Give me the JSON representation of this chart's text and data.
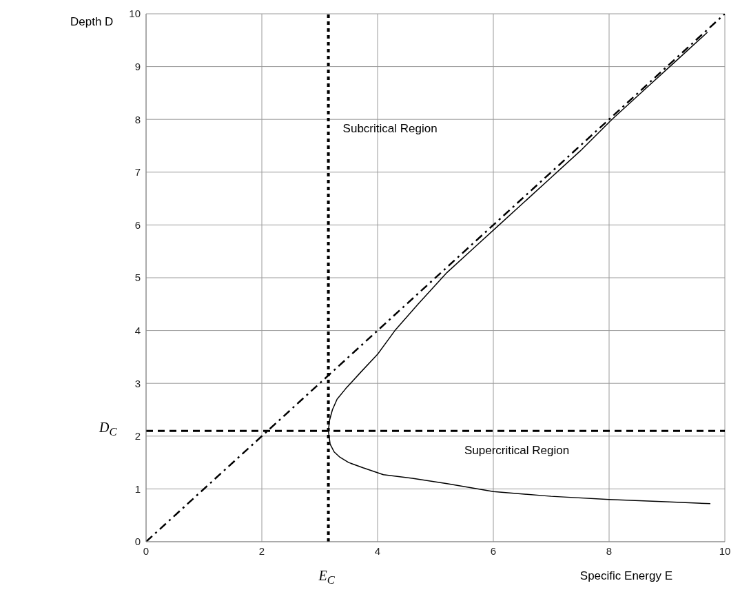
{
  "chart_data": {
    "type": "line",
    "xlabel": "Specific Energy E",
    "ylabel": "Depth D",
    "xlim": [
      0,
      10
    ],
    "ylim": [
      0,
      10
    ],
    "xticks": [
      0,
      2,
      4,
      6,
      8,
      10
    ],
    "yticks": [
      0,
      1,
      2,
      3,
      4,
      5,
      6,
      7,
      8,
      9,
      10
    ],
    "grid": true,
    "marker": "none",
    "series": [
      {
        "color": "#000000",
        "line_style": "solid",
        "x": [
          9.75,
          8.9,
          8,
          7,
          6,
          5.2,
          4.6,
          4.1,
          3.75,
          3.5,
          3.35,
          3.25,
          3.18,
          3.15,
          3.17,
          3.22,
          3.3,
          3.45,
          3.7,
          4.0,
          4.3,
          4.7,
          5.2,
          5.7,
          6.1,
          6.5,
          7.0,
          7.5,
          8.05,
          8.6,
          9.2,
          9.7
        ],
        "values": [
          0.72,
          0.76,
          0.8,
          0.86,
          0.95,
          1.1,
          1.2,
          1.27,
          1.4,
          1.5,
          1.6,
          1.7,
          1.85,
          2.1,
          2.3,
          2.5,
          2.7,
          2.9,
          3.2,
          3.55,
          4.0,
          4.5,
          5.1,
          5.6,
          6.0,
          6.4,
          6.9,
          7.4,
          8.0,
          8.55,
          9.15,
          9.65
        ]
      },
      {
        "color": "#000000",
        "line_style": "dashed",
        "x": [
          0,
          10
        ],
        "values": [
          0,
          10
        ]
      }
    ],
    "ref_lines": [
      {
        "axis": "y",
        "value": 2.1,
        "label": "D$_{C}$",
        "line_style": "dashed",
        "color": "#000000"
      },
      {
        "axis": "x",
        "value": 3.15,
        "label": "E$_{C}$",
        "line_style": "dotted",
        "color": "#000000"
      }
    ],
    "annotations": [
      "Subcritical Region",
      "Supercritical Region"
    ]
  }
}
